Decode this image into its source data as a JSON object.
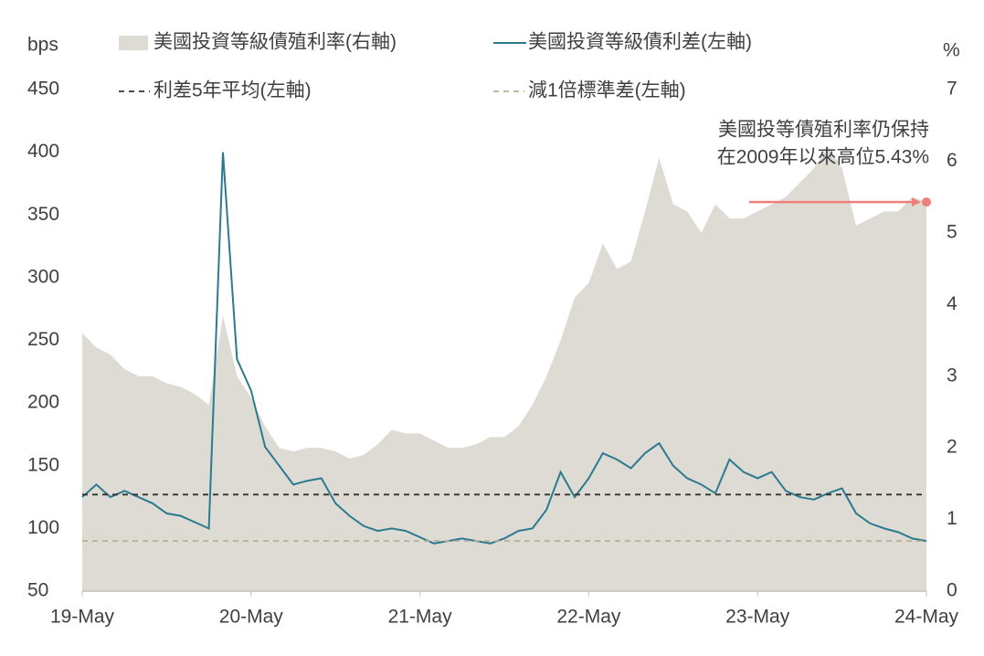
{
  "chart_data": {
    "type": "line",
    "y_label": "bps",
    "y2_label": "%",
    "categories": [
      "19-May",
      null,
      null,
      null,
      null,
      null,
      null,
      null,
      null,
      null,
      null,
      null,
      "20-May",
      null,
      null,
      null,
      null,
      null,
      null,
      null,
      null,
      null,
      null,
      null,
      "21-May",
      null,
      null,
      null,
      null,
      null,
      null,
      null,
      null,
      null,
      null,
      null,
      "22-May",
      null,
      null,
      null,
      null,
      null,
      null,
      null,
      null,
      null,
      null,
      null,
      "23-May",
      null,
      null,
      null,
      null,
      null,
      null,
      null,
      null,
      null,
      null,
      null,
      "24-May"
    ],
    "series": [
      {
        "name": "美國投資等級債殖利率(右軸)",
        "color": "#dedbd5",
        "style": "area",
        "axis": "y2",
        "values": [
          3.6,
          3.4,
          3.3,
          3.1,
          3.0,
          3.0,
          2.9,
          2.85,
          2.75,
          2.6,
          3.85,
          3.0,
          2.7,
          2.3,
          2.0,
          1.95,
          2.0,
          2.0,
          1.95,
          1.85,
          1.9,
          2.05,
          2.25,
          2.2,
          2.2,
          2.1,
          2.0,
          2.0,
          2.05,
          2.15,
          2.15,
          2.3,
          2.6,
          3.0,
          3.5,
          4.1,
          4.3,
          4.85,
          4.5,
          4.6,
          5.3,
          6.05,
          5.4,
          5.3,
          5.0,
          5.4,
          5.2,
          5.2,
          5.3,
          5.4,
          5.5,
          5.7,
          5.9,
          6.2,
          5.9,
          5.1,
          5.2,
          5.3,
          5.3,
          5.5,
          5.43
        ]
      },
      {
        "name": "美國投資等級債利差(左軸)",
        "color": "#2b7a8f",
        "style": "line",
        "values": [
          125,
          135,
          125,
          130,
          125,
          120,
          112,
          110,
          105,
          100,
          400,
          235,
          210,
          165,
          150,
          135,
          138,
          140,
          120,
          110,
          102,
          98,
          100,
          98,
          93,
          88,
          90,
          92,
          90,
          88,
          92,
          98,
          100,
          115,
          145,
          125,
          140,
          160,
          155,
          148,
          160,
          168,
          150,
          140,
          135,
          128,
          155,
          145,
          140,
          145,
          130,
          125,
          123,
          128,
          132,
          112,
          104,
          100,
          97,
          92,
          90
        ]
      }
    ],
    "reference_lines": [
      {
        "name": "利差5年平均(左軸)",
        "value": 127,
        "color": "#333333"
      },
      {
        "name": "減1倍標準差(左軸)",
        "value": 90,
        "color": "#b8b096"
      }
    ],
    "annotation": {
      "lines": [
        "美國投等債殖利率仍保持",
        "在2009年以來高位5.43%"
      ],
      "color": "#ef7f7a"
    },
    "ylim": [
      50,
      450
    ],
    "yticks": [
      50,
      100,
      150,
      200,
      250,
      300,
      350,
      400,
      450
    ],
    "y2lim": [
      0,
      7
    ],
    "y2ticks": [
      0,
      1,
      2,
      3,
      4,
      5,
      6,
      7
    ]
  }
}
